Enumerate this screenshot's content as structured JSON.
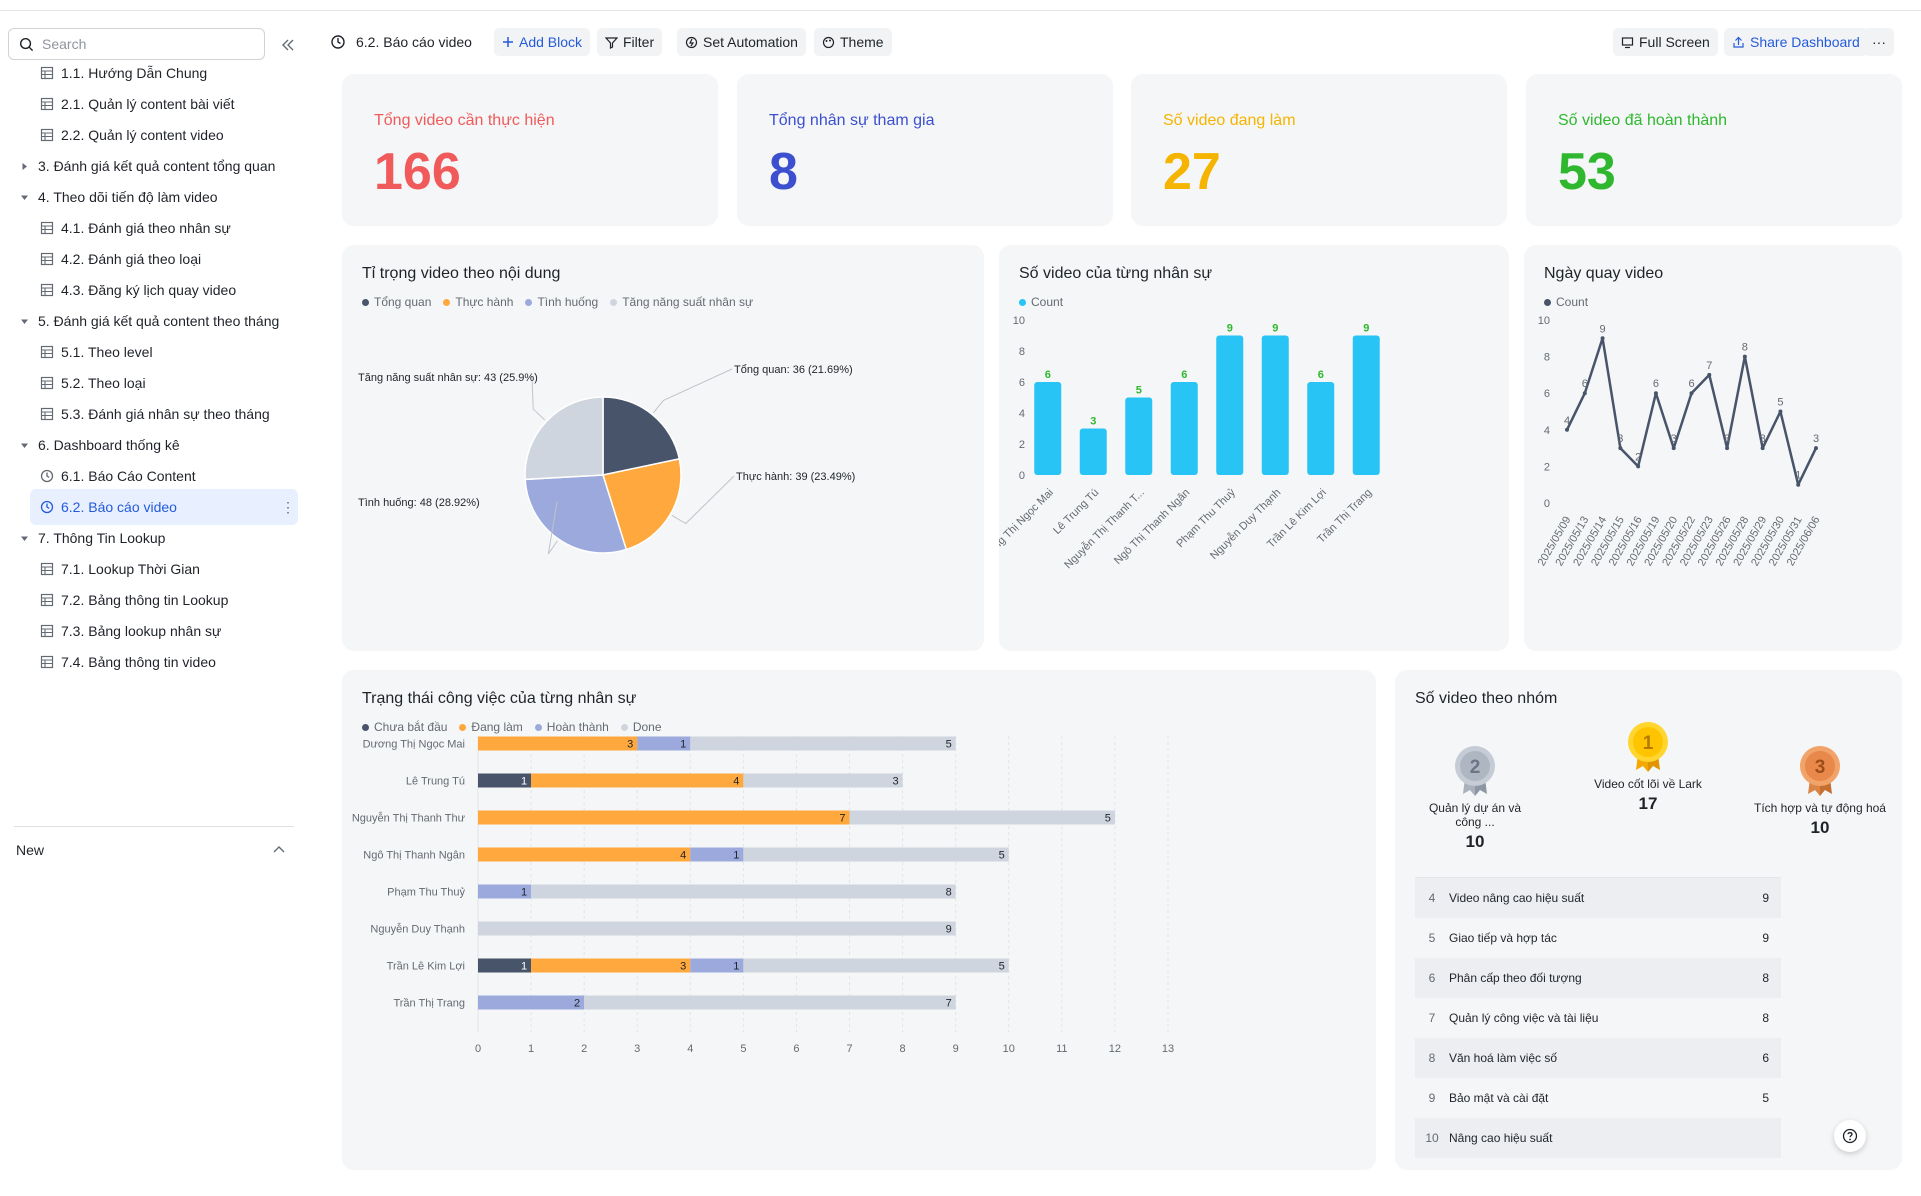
{
  "sidebar": {
    "search_placeholder": "Search",
    "new_label": "New",
    "items": [
      {
        "label": "1.1. Hướng Dẫn Chung",
        "level": 2,
        "type": "table"
      },
      {
        "label": "2.1. Quản lý content bài viết",
        "level": 2,
        "type": "table"
      },
      {
        "label": "2.2. Quản lý content video",
        "level": 2,
        "type": "table"
      },
      {
        "label": "3. Đánh giá kết quả content tổng quan",
        "level": 1,
        "type": "folder-collapsed"
      },
      {
        "label": "4. Theo dõi tiến độ làm video",
        "level": 1,
        "type": "folder-open"
      },
      {
        "label": "4.1. Đánh giá theo nhân sự",
        "level": 2,
        "type": "table"
      },
      {
        "label": "4.2. Đánh giá theo loại",
        "level": 2,
        "type": "table"
      },
      {
        "label": "4.3. Đăng ký lịch quay video",
        "level": 2,
        "type": "table"
      },
      {
        "label": "5. Đánh giá kết quả content theo tháng",
        "level": 1,
        "type": "folder-open"
      },
      {
        "label": "5.1. Theo level",
        "level": 2,
        "type": "table"
      },
      {
        "label": "5.2. Theo loại",
        "level": 2,
        "type": "table"
      },
      {
        "label": "5.3. Đánh giá nhân sự theo tháng",
        "level": 2,
        "type": "table"
      },
      {
        "label": "6. Dashboard thống kê",
        "level": 1,
        "type": "folder-open"
      },
      {
        "label": "6.1. Báo Cáo Content",
        "level": 2,
        "type": "dashboard"
      },
      {
        "label": "6.2. Báo cáo video",
        "level": 2,
        "type": "dashboard",
        "active": true
      },
      {
        "label": "7. Thông Tin Lookup",
        "level": 1,
        "type": "folder-open"
      },
      {
        "label": "7.1. Lookup Thời Gian",
        "level": 2,
        "type": "table"
      },
      {
        "label": "7.2. Bảng thông tin Lookup",
        "level": 2,
        "type": "table"
      },
      {
        "label": "7.3. Bảng lookup nhân sự",
        "level": 2,
        "type": "table"
      },
      {
        "label": "7.4. Bảng thông tin video",
        "level": 2,
        "type": "table"
      }
    ]
  },
  "toolbar": {
    "title": "6.2. Báo cáo video",
    "add_block": "Add Block",
    "filter": "Filter",
    "set_automation": "Set Automation",
    "theme": "Theme",
    "full_screen": "Full Screen",
    "share_dashboard": "Share Dashboard",
    "more": "···"
  },
  "kpis": [
    {
      "label": "Tổng video cần thực hiện",
      "value": "166",
      "color": "#f05a5a"
    },
    {
      "label": "Tổng nhân sự tham gia",
      "value": "8",
      "color": "#3b4fcf"
    },
    {
      "label": "Số video đang làm",
      "value": "27",
      "color": "#f5b400"
    },
    {
      "label": "Số video đã hoàn thành",
      "value": "53",
      "color": "#2fb82f"
    }
  ],
  "colors": {
    "dark": "#47546a",
    "orange": "#ffa83d",
    "purple": "#9ba9dd",
    "grey": "#cfd5df",
    "cyan": "#28c4f5"
  },
  "pie": {
    "title": "Tỉ trọng video theo nội dung",
    "legend": [
      "Tổng quan",
      "Thực hành",
      "Tình huống",
      "Tăng năng suất nhân sự"
    ],
    "labels": [
      "Tổng quan: 36 (21.69%)",
      "Thực hành: 39 (23.49%)",
      "Tình huống: 48 (28.92%)",
      "Tăng năng suất nhân sự: 43 (25.9%)"
    ]
  },
  "bar_card": {
    "title": "Số video của từng nhân sự",
    "legend": "Count"
  },
  "line_card": {
    "title": "Ngày quay video",
    "legend": "Count"
  },
  "stack_card": {
    "title": "Trạng thái công việc của từng nhân sự",
    "legend": [
      "Chưa bắt đầu",
      "Đang làm",
      "Hoàn thành",
      "Done"
    ]
  },
  "group_card": {
    "title": "Số video theo nhóm",
    "medals": [
      {
        "rank": "2",
        "label": "Quản lý dự án và công ...",
        "value": "10"
      },
      {
        "rank": "1",
        "label": "Video cốt lõi về Lark",
        "value": "17"
      },
      {
        "rank": "3",
        "label": "Tích hợp và tự động hoá",
        "value": "10"
      }
    ],
    "rows": [
      {
        "rank": "4",
        "label": "Video nâng cao hiệu suất",
        "value": "9"
      },
      {
        "rank": "5",
        "label": "Giao tiếp và hợp tác",
        "value": "9"
      },
      {
        "rank": "6",
        "label": "Phân cấp theo đối tượng",
        "value": "8"
      },
      {
        "rank": "7",
        "label": "Quản lý công việc và tài liệu",
        "value": "8"
      },
      {
        "rank": "8",
        "label": "Văn hoá làm việc số",
        "value": "6"
      },
      {
        "rank": "9",
        "label": "Bảo mật và cài đặt",
        "value": "5"
      },
      {
        "rank": "10",
        "label": "Nâng cao hiệu suất",
        "value": ""
      }
    ]
  },
  "chart_data": [
    {
      "type": "pie",
      "title": "Tỉ trọng video theo nội dung",
      "categories": [
        "Tổng quan",
        "Thực hành",
        "Tình huống",
        "Tăng năng suất nhân sự"
      ],
      "values": [
        36,
        39,
        48,
        43
      ],
      "percents": [
        "21.69%",
        "23.49%",
        "28.92%",
        "25.9%"
      ]
    },
    {
      "type": "bar",
      "title": "Số video của từng nhân sự",
      "categories": [
        "Dương Thị Ngọc Mai",
        "Lê Trung Tú",
        "Nguyễn Thị Thanh T...",
        "Ngô Thị Thanh Ngân",
        "Phạm Thu Thuỷ",
        "Nguyễn Duy Thạnh",
        "Trần Lê Kim Lợi",
        "Trần Thị Trang"
      ],
      "series": [
        {
          "name": "Count",
          "values": [
            6,
            3,
            5,
            6,
            9,
            9,
            6,
            9
          ]
        }
      ],
      "ylim": [
        0,
        10
      ],
      "yticks": [
        "0",
        "2",
        "4",
        "6",
        "8",
        "10"
      ]
    },
    {
      "type": "line",
      "title": "Ngày quay video",
      "x": [
        "2025/05/09",
        "2025/05/13",
        "2025/05/14",
        "2025/05/15",
        "2025/05/16",
        "2025/05/19",
        "2025/05/20",
        "2025/05/22",
        "2025/05/23",
        "2025/05/26",
        "2025/05/28",
        "2025/05/29",
        "2025/05/30",
        "2025/05/31",
        "2025/06/06"
      ],
      "series": [
        {
          "name": "Count",
          "values": [
            4,
            6,
            9,
            3,
            2,
            6,
            3,
            6,
            7,
            3,
            8,
            3,
            5,
            1,
            3
          ]
        }
      ],
      "ylim": [
        0,
        10
      ],
      "yticks": [
        "0",
        "2",
        "4",
        "6",
        "8",
        "10"
      ]
    },
    {
      "type": "bar",
      "orientation": "horizontal-stacked",
      "title": "Trạng thái công việc của từng nhân sự",
      "categories": [
        "Dương Thị Ngọc Mai",
        "Lê Trung Tú",
        "Nguyễn Thị Thanh Thư",
        "Ngô Thị Thanh Ngân",
        "Phạm Thu Thuỷ",
        "Nguyễn Duy Thạnh",
        "Trần Lê Kim Lợi",
        "Trần Thị Trang"
      ],
      "series": [
        {
          "name": "Chưa bắt đầu",
          "values": [
            0,
            1,
            0,
            0,
            0,
            0,
            1,
            0
          ]
        },
        {
          "name": "Đang làm",
          "values": [
            3,
            4,
            7,
            4,
            0,
            0,
            3,
            0
          ]
        },
        {
          "name": "Hoàn thành",
          "values": [
            1,
            0,
            0,
            1,
            1,
            0,
            1,
            2
          ]
        },
        {
          "name": "Done",
          "values": [
            5,
            3,
            5,
            5,
            8,
            9,
            5,
            7
          ]
        }
      ],
      "xlim": [
        0,
        13
      ],
      "xticks": [
        "0",
        "1",
        "2",
        "3",
        "4",
        "5",
        "6",
        "7",
        "8",
        "9",
        "10",
        "11",
        "12",
        "13"
      ]
    }
  ]
}
